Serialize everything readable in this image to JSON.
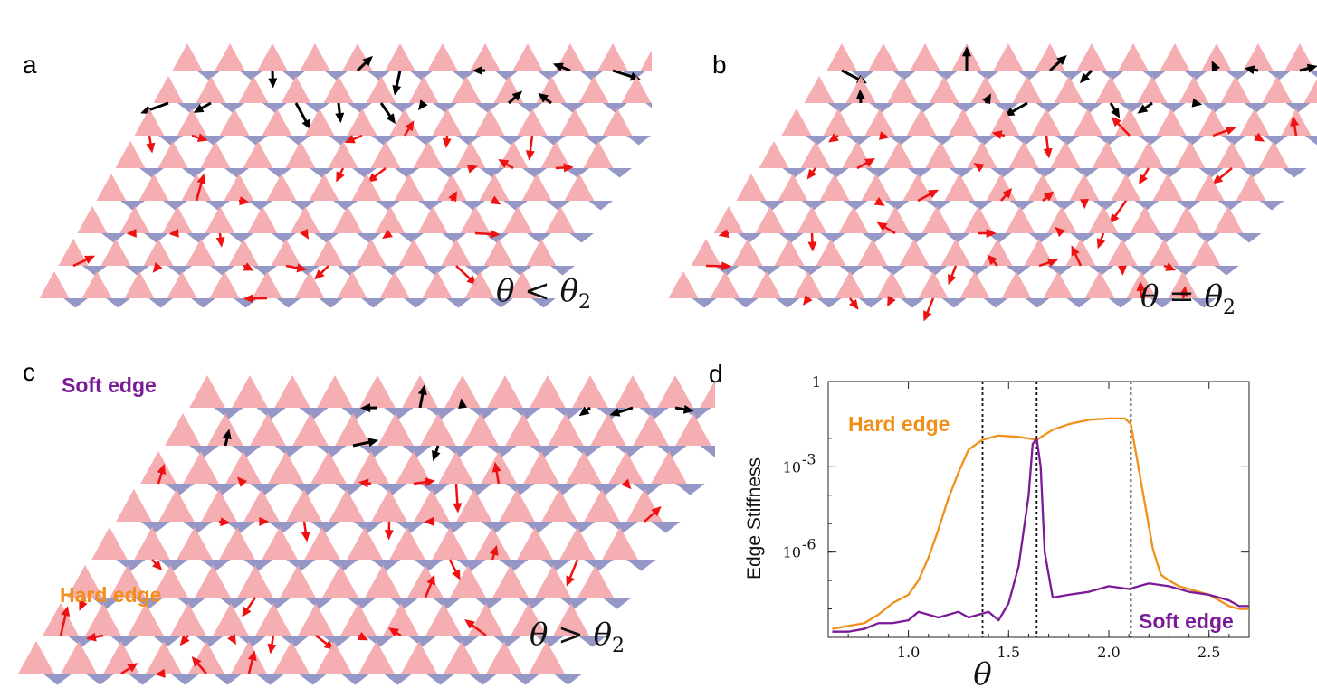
{
  "panels": {
    "a": {
      "letter": "a",
      "condition": "θ < θ",
      "sub": "2"
    },
    "b": {
      "letter": "b",
      "condition": "θ = θ",
      "sub": "2"
    },
    "c": {
      "letter": "c",
      "condition": "θ > θ",
      "sub": "2",
      "soft_edge_label": "Soft edge",
      "hard_edge_label": "Hard edge"
    },
    "d": {
      "letter": "d"
    }
  },
  "colors": {
    "pink_triangle": "#f4a7aa",
    "blue_triangle": "#8f92c3",
    "red_arrow": "#ee1111",
    "black_arrow": "#000000",
    "hard_edge": "#f0901a",
    "soft_edge": "#7a1a96"
  },
  "chart_data": {
    "type": "line",
    "title": "",
    "xlabel": "θ",
    "ylabel": "Edge Stiffness",
    "xlim": [
      0.6,
      2.7
    ],
    "ylim_log10": [
      -9,
      0
    ],
    "y_scale": "log",
    "x_ticks": [
      1.0,
      1.5,
      2.0,
      2.5
    ],
    "x_tick_labels": [
      "1.0",
      "1.5",
      "2.0",
      "2.5"
    ],
    "y_ticks_log10": [
      0,
      -3,
      -6
    ],
    "y_tick_labels": [
      "1",
      "10",
      "10"
    ],
    "y_tick_exponents": [
      "",
      "-3",
      "-6"
    ],
    "vlines": [
      1.37,
      1.64,
      2.11
    ],
    "annotations": [
      "Hard edge",
      "Soft edge"
    ],
    "series": [
      {
        "name": "Hard edge",
        "x": [
          0.62,
          0.7,
          0.78,
          0.85,
          0.92,
          1.0,
          1.05,
          1.1,
          1.15,
          1.2,
          1.25,
          1.3,
          1.37,
          1.45,
          1.55,
          1.64,
          1.72,
          1.8,
          1.9,
          2.0,
          2.08,
          2.11,
          2.14,
          2.18,
          2.22,
          2.26,
          2.3,
          2.35,
          2.4,
          2.45,
          2.5,
          2.55,
          2.6,
          2.65,
          2.7
        ],
        "log10_y": [
          -8.7,
          -8.6,
          -8.5,
          -8.2,
          -7.8,
          -7.5,
          -7.0,
          -6.2,
          -5.2,
          -4.1,
          -3.2,
          -2.4,
          -2.05,
          -1.9,
          -1.95,
          -2.05,
          -1.7,
          -1.5,
          -1.35,
          -1.3,
          -1.3,
          -1.5,
          -2.7,
          -4.3,
          -5.9,
          -6.8,
          -7.0,
          -7.2,
          -7.3,
          -7.4,
          -7.5,
          -7.7,
          -7.9,
          -8.0,
          -8.0
        ]
      },
      {
        "name": "Soft edge",
        "x": [
          0.62,
          0.7,
          0.78,
          0.85,
          0.92,
          1.0,
          1.05,
          1.1,
          1.15,
          1.2,
          1.25,
          1.3,
          1.35,
          1.4,
          1.45,
          1.5,
          1.55,
          1.6,
          1.62,
          1.64,
          1.66,
          1.68,
          1.72,
          1.8,
          1.9,
          2.0,
          2.1,
          2.2,
          2.3,
          2.4,
          2.5,
          2.55,
          2.6,
          2.65,
          2.7
        ],
        "log10_y": [
          -8.8,
          -8.8,
          -8.7,
          -8.5,
          -8.5,
          -8.4,
          -8.1,
          -8.2,
          -8.3,
          -8.2,
          -8.1,
          -8.3,
          -8.2,
          -8.1,
          -8.4,
          -7.8,
          -6.5,
          -4.0,
          -2.2,
          -2.0,
          -3.0,
          -6.0,
          -7.6,
          -7.5,
          -7.4,
          -7.2,
          -7.3,
          -7.1,
          -7.2,
          -7.4,
          -7.5,
          -7.6,
          -7.7,
          -7.9,
          -7.9
        ]
      }
    ]
  }
}
